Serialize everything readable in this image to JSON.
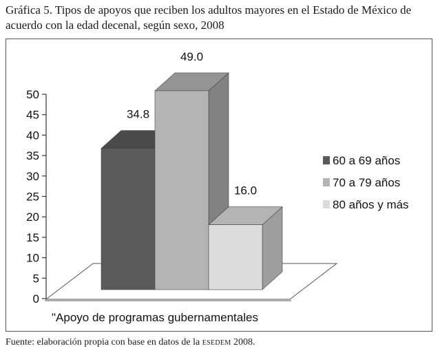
{
  "caption": "Gráfica 5. Tipos de apoyos que reciben los adultos mayores en el Estado de México de acuerdo con la edad decenal, según sexo, 2008",
  "source": {
    "prefix": "Fuente: elaboración propia con base en datos de la ",
    "acronym": "esedem",
    "suffix": " 2008."
  },
  "colors": {
    "series1": "#5a5a5a",
    "series2": "#b4b4b4",
    "series3": "#dcdcdc",
    "floor_edge": "#555555",
    "text": "#111111"
  },
  "chart_data": {
    "type": "bar",
    "style": "3d-clustered",
    "categories": [
      "\"Apoyo de programas gubernamentales"
    ],
    "series": [
      {
        "name": "60 a 69 años",
        "values": [
          34.8
        ]
      },
      {
        "name": "70 a 79 años",
        "values": [
          49.0
        ]
      },
      {
        "name": "80 años y más",
        "values": [
          16.0
        ]
      }
    ],
    "data_labels": [
      "34.8",
      "49.0",
      "16.0"
    ],
    "ylim": [
      0,
      50
    ],
    "yticks": [
      0,
      5,
      10,
      15,
      20,
      25,
      30,
      35,
      40,
      45,
      50
    ],
    "title": "",
    "xlabel": "",
    "ylabel": "",
    "legend_position": "right"
  }
}
